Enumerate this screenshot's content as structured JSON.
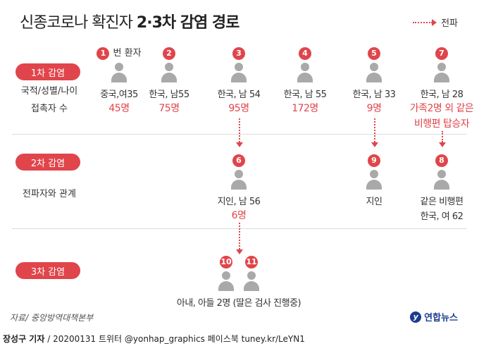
{
  "title": {
    "normal": "신종코로나 확진자 ",
    "bold": "2·3차 감염 경로"
  },
  "legend": {
    "label": "전파"
  },
  "stages": {
    "first": "1차 감염",
    "second": "2차 감염",
    "third": "3차 감염"
  },
  "side_labels": {
    "nationality": "국적/성별/나이",
    "contacts": "접촉자 수",
    "relation": "전파자와 관계"
  },
  "first_wave": [
    {
      "num": "1",
      "extra": "번 환자",
      "info": "중국,여35",
      "count": "45명"
    },
    {
      "num": "2",
      "info": "한국, 남55",
      "count": "75명"
    },
    {
      "num": "3",
      "info": "한국, 남 54",
      "count": "95명"
    },
    {
      "num": "4",
      "info": "한국, 남 55",
      "count": "172명"
    },
    {
      "num": "5",
      "info": "한국, 남 33",
      "count": "9명"
    },
    {
      "num": "7",
      "info": "한국, 남 28",
      "count": "가족2명 외 같은",
      "count2": "비행편 탑승자"
    }
  ],
  "second_wave": [
    {
      "num": "6",
      "info": "지인, 남 56",
      "count": "6명"
    },
    {
      "num": "9",
      "info": "지인"
    },
    {
      "num": "8",
      "info": "같은 비행편",
      "info2": "한국, 여 62"
    }
  ],
  "third_wave": {
    "nums": [
      "10",
      "11"
    ],
    "info": "아내, 아들 2명  (딸은 검사 진행중)"
  },
  "source": "자료/ 중앙방역대책본부",
  "brand": "연합뉴스",
  "footer": {
    "author": "장성구 기자",
    "rest": " / 20200131   트위터 @yonhap_graphics  페이스북 tuney.kr/LeYN1"
  },
  "colors": {
    "accent": "#e0454b",
    "person": "#a9a9a9",
    "brand": "#1a3c8f"
  }
}
